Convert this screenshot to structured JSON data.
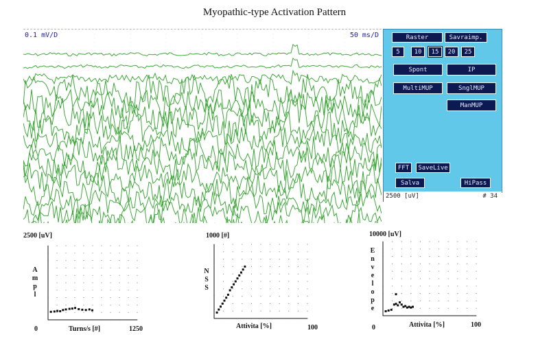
{
  "title": "Myopathic-type Activation Pattern",
  "trace": {
    "sensitivity": "0.1 mV/D",
    "sweep": "50 ms/D"
  },
  "panel": {
    "raster_label": "Raster",
    "savraimp_label": "Savraimp.",
    "raster_options": [
      "5",
      "10",
      "15",
      "20",
      "25"
    ],
    "selected_raster": "15",
    "spont_label": "Spont",
    "ip_label": "IP",
    "multimup_label": "MultiMUP",
    "snglmup_label": "SnglMUP",
    "manmup_label": "ManMUP",
    "fft_label": "FFT",
    "savelive_label": "SaveLive",
    "salva_label": "Salva",
    "hipass_label": "HiPass",
    "colors": {
      "background": "#62c8ea",
      "button": "#0d1a52",
      "trace": "#3fa83a"
    }
  },
  "status": {
    "range": "2500 [uV]",
    "count": "# 34"
  },
  "chart_data": [
    {
      "type": "scatter",
      "ytop_label": "2500 [uV]",
      "ylabel": "Ampl",
      "xlabel": "Turns/s [#]",
      "x_origin": "0",
      "x_max_label": "1250",
      "xlim": [
        0,
        1250
      ],
      "ylim": [
        0,
        2500
      ],
      "grid": true,
      "x": [
        40,
        90,
        130,
        170,
        210,
        250,
        300,
        340,
        380,
        430,
        480,
        530,
        580,
        620
      ],
      "y": [
        270,
        280,
        300,
        290,
        330,
        350,
        370,
        380,
        400,
        360,
        340,
        330,
        350,
        320
      ]
    },
    {
      "type": "scatter",
      "ytop_label": "1000 [#]",
      "ylabel": "NSS",
      "xlabel": "Attivita [%]",
      "x_origin": "0",
      "x_max_label": "100",
      "xlim": [
        0,
        100
      ],
      "ylim": [
        0,
        1000
      ],
      "grid": true,
      "x": [
        3,
        5,
        7,
        9,
        11,
        13,
        15,
        17,
        19,
        21,
        23,
        25,
        27,
        29,
        31,
        33
      ],
      "y": [
        80,
        120,
        160,
        200,
        240,
        280,
        320,
        380,
        420,
        460,
        500,
        540,
        580,
        620,
        660,
        700
      ]
    },
    {
      "type": "scatter",
      "ytop_label": "10000 [uV]",
      "ylabel": "Envelope",
      "xlabel": "Attivita [%]",
      "x_origin": "0",
      "x_max_label": "100",
      "xlim": [
        0,
        100
      ],
      "ylim": [
        0,
        10000
      ],
      "grid": true,
      "x": [
        3,
        6,
        9,
        12,
        14,
        16,
        18,
        20,
        22,
        24,
        26,
        28,
        30,
        32,
        14
      ],
      "y": [
        600,
        700,
        800,
        1500,
        1600,
        1400,
        1800,
        1500,
        1200,
        1300,
        1100,
        1200,
        1100,
        1200,
        2900
      ]
    }
  ]
}
